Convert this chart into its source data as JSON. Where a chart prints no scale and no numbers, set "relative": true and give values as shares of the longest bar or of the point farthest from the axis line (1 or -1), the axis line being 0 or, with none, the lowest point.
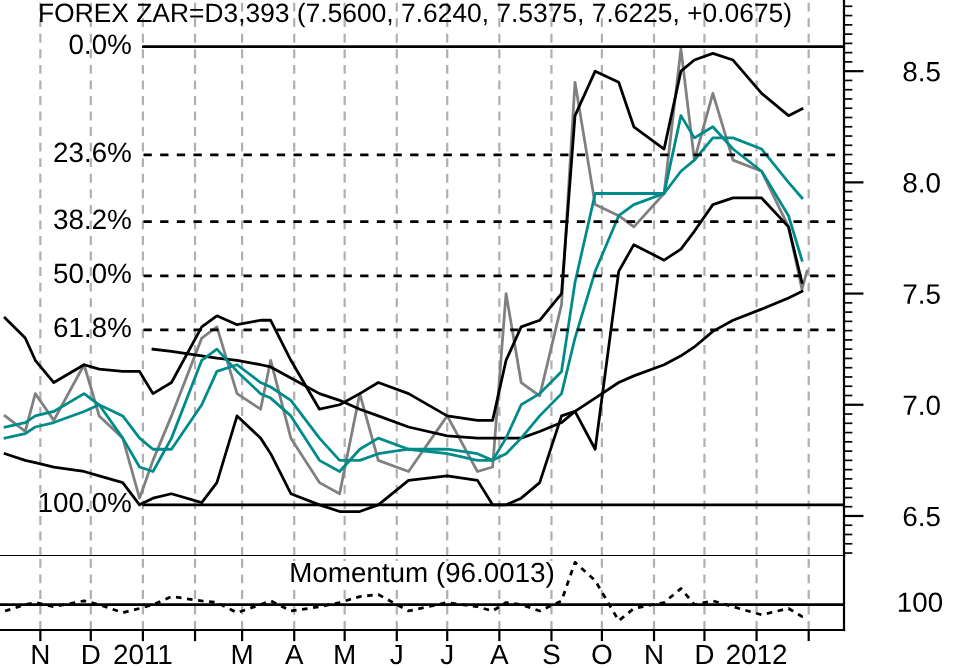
{
  "chart_data": [
    {
      "type": "line",
      "title": "FOREX ZAR=D3,393 (7.5600, 7.6240, 7.5375, 7.6225, +0.0675)",
      "x": [
        "2010-10-11",
        "2010-10-23",
        "2010-10-29",
        "2010-11-09",
        "2010-11-27",
        "2010-12-06",
        "2010-12-20",
        "2010-12-30",
        "2011-01-07",
        "2011-01-18",
        "2011-02-05",
        "2011-02-14",
        "2011-02-26",
        "2011-03-12",
        "2011-03-18",
        "2011-03-30",
        "2011-04-16",
        "2011-04-28",
        "2011-05-10",
        "2011-05-21",
        "2011-06-08",
        "2011-07-01",
        "2011-07-19",
        "2011-07-28",
        "2011-08-05",
        "2011-08-14",
        "2011-08-25",
        "2011-09-07",
        "2011-09-15",
        "2011-09-27",
        "2011-10-11",
        "2011-10-20",
        "2011-11-07",
        "2011-11-17",
        "2011-11-25",
        "2011-12-06",
        "2011-12-18",
        "2012-01-04",
        "2012-01-20",
        "2012-01-28",
        "2012-01-31"
      ],
      "series": [
        {
          "color": "#808080",
          "values": [
            6.95,
            6.88,
            7.05,
            6.93,
            7.18,
            6.95,
            6.85,
            6.58,
            6.75,
            6.95,
            7.3,
            7.35,
            7.05,
            6.98,
            7.2,
            6.85,
            6.65,
            6.6,
            7.05,
            6.75,
            6.7,
            6.95,
            6.7,
            6.72,
            7.5,
            7.1,
            7.04,
            7.45,
            8.45,
            7.9,
            7.85,
            7.8,
            7.95,
            8.6,
            8.1,
            8.4,
            8.1,
            8.05,
            7.8,
            7.52,
            7.6
          ]
        },
        {
          "color": "#000000",
          "values": [
            7.39,
            7.3,
            7.2,
            7.1,
            7.18,
            7.16,
            7.15,
            7.15,
            7.05,
            7.1,
            7.35,
            7.4,
            7.36,
            7.38,
            7.38,
            7.2,
            6.98,
            7.0,
            7.05,
            7.1,
            7.05,
            6.95,
            6.93,
            6.93,
            7.2,
            7.35,
            7.38,
            7.5,
            8.3,
            8.5,
            8.45,
            8.25,
            8.15,
            8.5,
            8.55,
            8.58,
            8.55,
            8.4,
            8.3,
            8.33,
            null
          ]
        },
        {
          "color": "#000000",
          "values": [
            6.78,
            6.75,
            6.74,
            6.72,
            6.7,
            6.68,
            6.65,
            6.55,
            6.58,
            6.6,
            6.56,
            6.65,
            6.95,
            6.85,
            6.78,
            6.6,
            6.55,
            6.52,
            6.52,
            6.55,
            6.66,
            6.68,
            6.66,
            6.55,
            6.55,
            6.58,
            6.65,
            6.95,
            6.97,
            6.8,
            7.6,
            7.72,
            7.65,
            7.7,
            7.78,
            7.9,
            7.93,
            7.93,
            7.8,
            7.55,
            null
          ]
        },
        {
          "color": "#000000",
          "values": [
            null,
            null,
            null,
            null,
            null,
            null,
            null,
            null,
            7.25,
            7.24,
            7.22,
            7.21,
            7.2,
            7.18,
            7.17,
            7.12,
            7.05,
            7.02,
            6.98,
            6.95,
            6.9,
            6.86,
            6.85,
            6.85,
            6.85,
            6.85,
            6.88,
            6.92,
            6.97,
            7.03,
            7.1,
            7.13,
            7.18,
            7.22,
            7.26,
            7.33,
            7.38,
            7.43,
            7.48,
            7.51,
            null
          ]
        },
        {
          "color": "#008b8b",
          "values": [
            6.9,
            6.92,
            6.95,
            6.97,
            7.05,
            7.0,
            6.85,
            6.72,
            6.7,
            6.85,
            7.2,
            7.25,
            7.15,
            7.05,
            7.03,
            6.95,
            6.75,
            6.7,
            6.8,
            6.85,
            6.8,
            6.8,
            6.78,
            6.75,
            6.85,
            7.0,
            7.05,
            7.15,
            7.55,
            7.95,
            7.95,
            7.95,
            7.95,
            8.3,
            8.2,
            8.25,
            8.15,
            8.05,
            7.85,
            7.65,
            null
          ]
        },
        {
          "color": "#008b8b",
          "values": [
            6.85,
            6.87,
            6.9,
            6.92,
            6.97,
            7.0,
            6.95,
            6.85,
            6.8,
            6.8,
            7.0,
            7.15,
            7.18,
            7.1,
            7.08,
            7.02,
            6.85,
            6.75,
            6.75,
            6.78,
            6.8,
            6.78,
            6.75,
            6.75,
            6.78,
            6.85,
            6.95,
            7.05,
            7.3,
            7.6,
            7.85,
            7.9,
            7.95,
            8.05,
            8.1,
            8.2,
            8.2,
            8.15,
            8.0,
            7.93,
            null
          ]
        }
      ],
      "xlim": [
        "2010-10-08",
        "2012-02-22"
      ],
      "xticks": [
        {
          "value": "2010-11-01",
          "label": null
        },
        {
          "value": "2010-12-01",
          "label": null
        },
        {
          "value": "2011-01-01",
          "label": null
        },
        {
          "value": "2011-02-01",
          "label": null
        },
        {
          "value": "2011-03-01",
          "label": null
        },
        {
          "value": "2011-04-01",
          "label": null
        },
        {
          "value": "2011-05-01",
          "label": null
        },
        {
          "value": "2011-06-01",
          "label": null
        },
        {
          "value": "2011-07-01",
          "label": null
        },
        {
          "value": "2011-08-01",
          "label": null
        },
        {
          "value": "2011-09-01",
          "label": null
        },
        {
          "value": "2011-10-01",
          "label": null
        },
        {
          "value": "2011-11-01",
          "label": null
        },
        {
          "value": "2011-12-01",
          "label": null
        },
        {
          "value": "2012-01-01",
          "label": null
        },
        {
          "value": "2012-02-01",
          "label": null
        }
      ],
      "ylim": [
        6.32,
        8.82
      ],
      "yticks": [
        6.5,
        {
          "value": 7,
          "label": "7.0"
        },
        7.5,
        {
          "value": 8,
          "label": "8.0"
        },
        8.5
      ],
      "tick_labels": "y",
      "grid": "x",
      "line_style": "solid",
      "ref_lines": [
        {
          "axis": "y",
          "value": 8.61,
          "line_style": "solid"
        },
        {
          "axis": "y",
          "value": 8.124,
          "line_style": "dashed"
        },
        {
          "axis": "y",
          "value": 7.823,
          "line_style": "dashed"
        },
        {
          "axis": "y",
          "value": 7.58,
          "line_style": "dashed"
        },
        {
          "axis": "y",
          "value": 7.337,
          "line_style": "dashed"
        },
        {
          "axis": "y",
          "value": 6.55,
          "line_style": "solid"
        }
      ],
      "annotations": [
        {
          "text": "0.0%",
          "x": "2011-01-01",
          "y": 8.61
        },
        {
          "text": "23.6%",
          "x": "2011-01-01",
          "y": 8.124
        },
        {
          "text": "38.2%",
          "x": "2011-01-01",
          "y": 7.823
        },
        {
          "text": "50.0%",
          "x": "2011-01-01",
          "y": 7.58
        },
        {
          "text": "61.8%",
          "x": "2011-01-01",
          "y": 7.337
        },
        {
          "text": "100.0%",
          "x": "2011-01-01",
          "y": 6.55
        }
      ]
    },
    {
      "type": "line",
      "title": "Momentum (96.0013)",
      "relative": true,
      "x": [
        "2010-10-11",
        "2010-10-23",
        "2010-10-29",
        "2010-11-09",
        "2010-11-27",
        "2010-12-06",
        "2010-12-20",
        "2010-12-30",
        "2011-01-07",
        "2011-01-18",
        "2011-02-05",
        "2011-02-14",
        "2011-02-26",
        "2011-03-12",
        "2011-03-18",
        "2011-03-30",
        "2011-04-16",
        "2011-04-28",
        "2011-05-10",
        "2011-05-21",
        "2011-06-08",
        "2011-07-01",
        "2011-07-19",
        "2011-07-28",
        "2011-08-05",
        "2011-08-14",
        "2011-08-25",
        "2011-09-07",
        "2011-09-15",
        "2011-09-27",
        "2011-10-11",
        "2011-10-20",
        "2011-11-07",
        "2011-11-17",
        "2011-11-25",
        "2011-12-06",
        "2011-12-18",
        "2012-01-04",
        "2012-01-20",
        "2012-01-28",
        "2012-01-31"
      ],
      "series": [
        {
          "color": "#000000",
          "values": [
            -0.15,
            0,
            0.05,
            -0.05,
            0.09,
            0,
            -0.19,
            -0.09,
            0,
            0.19,
            0.09,
            0.05,
            -0.19,
            0,
            0.09,
            -0.15,
            -0.05,
            0.05,
            0.19,
            0.24,
            -0.15,
            0.05,
            -0.05,
            -0.15,
            0.05,
            0,
            -0.15,
            0.09,
            1,
            0.57,
            -0.38,
            -0.09,
            0.05,
            0.38,
            0,
            0.09,
            -0.05,
            -0.24,
            -0.09,
            -0.28,
            -0.24
          ]
        }
      ],
      "line_style": "dotted",
      "xlim": [
        "2010-10-08",
        "2012-02-22"
      ],
      "xticks": [
        {
          "value": "2010-11-01",
          "label": "N"
        },
        {
          "value": "2010-12-01",
          "label": "D"
        },
        {
          "value": "2011-01-01",
          "label": "2011"
        },
        {
          "value": "2011-02-01",
          "label": null
        },
        {
          "value": "2011-03-01",
          "label": "M"
        },
        {
          "value": "2011-04-01",
          "label": "A"
        },
        {
          "value": "2011-05-01",
          "label": "M"
        },
        {
          "value": "2011-06-01",
          "label": "J"
        },
        {
          "value": "2011-07-01",
          "label": "J"
        },
        {
          "value": "2011-08-01",
          "label": "A"
        },
        {
          "value": "2011-09-01",
          "label": "S"
        },
        {
          "value": "2011-10-01",
          "label": "O"
        },
        {
          "value": "2011-11-01",
          "label": "N"
        },
        {
          "value": "2011-12-01",
          "label": "D"
        },
        {
          "value": "2012-01-01",
          "label": "2012"
        },
        {
          "value": "2012-02-01",
          "label": null
        }
      ],
      "tick_labels": "x",
      "grid": "x",
      "annotations": [
        "100"
      ]
    }
  ]
}
